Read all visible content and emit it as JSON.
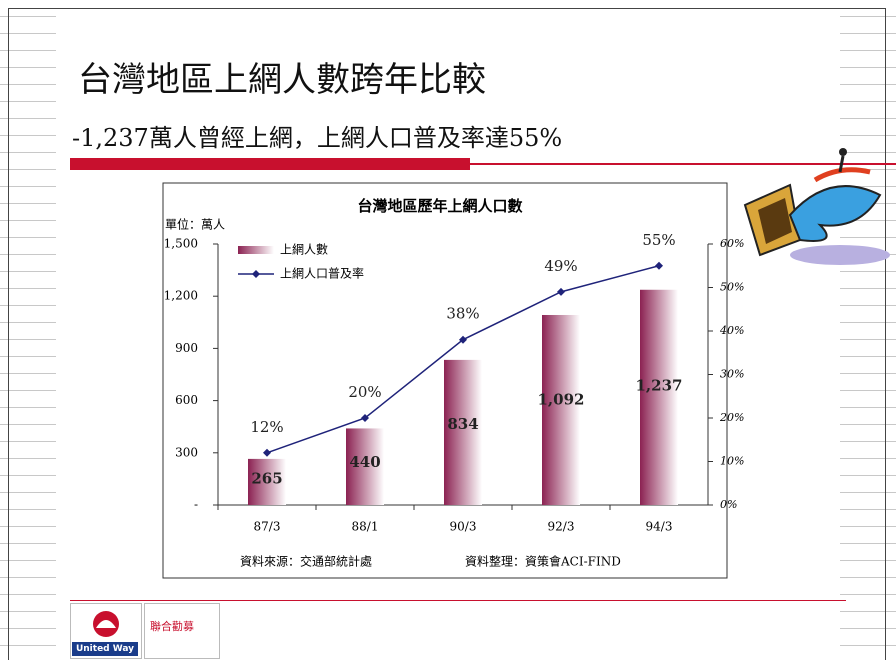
{
  "slide_title": "台灣地區上網人數跨年比較",
  "slide_subtitle": "-1,237萬人曾經上網，上網人口普及率達55%",
  "logos": [
    "United Way",
    "聯合勸募"
  ],
  "chart_data": {
    "type": "bar",
    "title": "台灣地區歷年上網人口數",
    "y_label": "單位：萬人",
    "source": "資料來源：交通部統計處",
    "compiled_by": "資料整理：資策會ACI-FIND",
    "categories": [
      "87/3",
      "88/1",
      "90/3",
      "92/3",
      "94/3"
    ],
    "series": [
      {
        "name": "上網人數",
        "type": "bar",
        "color": "#8b2252",
        "axis": "y",
        "values": [
          265,
          440,
          834,
          1092,
          1237
        ],
        "value_labels": [
          "265",
          "440",
          "834",
          "1,092",
          "1,237"
        ]
      },
      {
        "name": "上網人口普及率",
        "type": "line",
        "color": "#1f237a",
        "axis": "y2",
        "values": [
          12,
          20,
          38,
          49,
          55
        ],
        "value_labels": [
          "12%",
          "20%",
          "38%",
          "49%",
          "55%"
        ]
      }
    ],
    "ylim": [
      0,
      1500
    ],
    "yticks": [
      {
        "value": 0,
        "label": "-"
      },
      300,
      600,
      900,
      {
        "value": 1200,
        "label": "1,200"
      },
      {
        "value": 1500,
        "label": "1,500"
      }
    ],
    "y2lim": [
      0,
      60
    ],
    "y2ticks": [
      {
        "value": 0,
        "label": "0%"
      },
      {
        "value": 10,
        "label": "10%"
      },
      {
        "value": 20,
        "label": "20%"
      },
      {
        "value": 30,
        "label": "30%"
      },
      {
        "value": 40,
        "label": "40%"
      },
      {
        "value": 50,
        "label": "50%"
      },
      {
        "value": 60,
        "label": "60%"
      }
    ],
    "legend": "top-left",
    "grid": false
  }
}
